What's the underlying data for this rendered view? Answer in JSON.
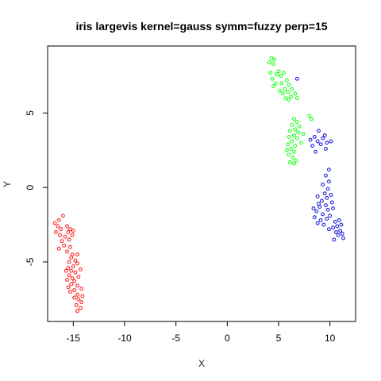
{
  "chart_data": {
    "type": "scatter",
    "title": "iris largevis kernel=gauss symm=fuzzy perp=15",
    "xlabel": "X",
    "ylabel": "Y",
    "xlim": [
      -17.5,
      12.5
    ],
    "ylim": [
      -9,
      9.5
    ],
    "xticks": [
      -15,
      -10,
      -5,
      0,
      5,
      10
    ],
    "yticks": [
      -5,
      0,
      5
    ],
    "grid": false,
    "series": [
      {
        "color": "#ff2a2a",
        "points": [
          [
            -16.0,
            -1.9
          ],
          [
            -16.4,
            -2.2
          ],
          [
            -16.8,
            -2.4
          ],
          [
            -16.5,
            -2.6
          ],
          [
            -16.2,
            -2.8
          ],
          [
            -16.7,
            -3.0
          ],
          [
            -16.3,
            -3.2
          ],
          [
            -15.6,
            -2.6
          ],
          [
            -15.3,
            -2.8
          ],
          [
            -15.0,
            -2.9
          ],
          [
            -15.5,
            -3.0
          ],
          [
            -15.1,
            -3.2
          ],
          [
            -15.8,
            -3.3
          ],
          [
            -15.4,
            -3.5
          ],
          [
            -16.1,
            -3.6
          ],
          [
            -15.9,
            -3.9
          ],
          [
            -16.4,
            -4.1
          ],
          [
            -15.3,
            -4.0
          ],
          [
            -15.6,
            -4.3
          ],
          [
            -15.1,
            -4.5
          ],
          [
            -14.6,
            -4.5
          ],
          [
            -15.2,
            -4.7
          ],
          [
            -14.8,
            -4.9
          ],
          [
            -15.4,
            -5.0
          ],
          [
            -14.6,
            -5.1
          ],
          [
            -15.0,
            -5.3
          ],
          [
            -14.3,
            -5.5
          ],
          [
            -15.5,
            -5.4
          ],
          [
            -15.7,
            -5.6
          ],
          [
            -15.2,
            -5.6
          ],
          [
            -14.8,
            -5.7
          ],
          [
            -15.4,
            -5.9
          ],
          [
            -14.5,
            -6.0
          ],
          [
            -15.1,
            -6.1
          ],
          [
            -15.6,
            -6.2
          ],
          [
            -14.9,
            -6.3
          ],
          [
            -15.2,
            -6.5
          ],
          [
            -14.6,
            -6.6
          ],
          [
            -15.5,
            -6.7
          ],
          [
            -14.2,
            -6.8
          ],
          [
            -14.9,
            -6.9
          ],
          [
            -15.3,
            -7.0
          ],
          [
            -14.6,
            -7.2
          ],
          [
            -14.1,
            -7.3
          ],
          [
            -14.9,
            -7.4
          ],
          [
            -14.5,
            -7.5
          ],
          [
            -14.2,
            -7.7
          ],
          [
            -14.7,
            -7.9
          ],
          [
            -14.3,
            -8.1
          ],
          [
            -14.6,
            -8.3
          ]
        ]
      },
      {
        "color": "#22ff22",
        "points": [
          [
            4.3,
            8.7
          ],
          [
            4.6,
            8.6
          ],
          [
            4.1,
            8.4
          ],
          [
            4.5,
            8.3
          ],
          [
            5.0,
            7.8
          ],
          [
            4.2,
            7.7
          ],
          [
            5.5,
            7.7
          ],
          [
            4.8,
            7.6
          ],
          [
            5.2,
            7.5
          ],
          [
            4.4,
            7.3
          ],
          [
            5.8,
            7.2
          ],
          [
            4.7,
            7.0
          ],
          [
            5.3,
            7.0
          ],
          [
            6.0,
            6.9
          ],
          [
            4.5,
            6.8
          ],
          [
            5.6,
            6.6
          ],
          [
            6.3,
            6.6
          ],
          [
            5.1,
            6.5
          ],
          [
            5.9,
            6.4
          ],
          [
            5.4,
            6.3
          ],
          [
            6.6,
            6.3
          ],
          [
            6.2,
            6.1
          ],
          [
            5.7,
            6.0
          ],
          [
            6.8,
            6.0
          ],
          [
            6.0,
            5.9
          ],
          [
            8.0,
            4.8
          ],
          [
            8.2,
            4.6
          ],
          [
            6.5,
            4.6
          ],
          [
            6.8,
            4.4
          ],
          [
            6.3,
            4.2
          ],
          [
            7.0,
            4.1
          ],
          [
            6.6,
            3.9
          ],
          [
            6.1,
            3.8
          ],
          [
            6.9,
            3.7
          ],
          [
            7.4,
            3.6
          ],
          [
            6.5,
            3.5
          ],
          [
            6.0,
            3.4
          ],
          [
            6.8,
            3.3
          ],
          [
            6.3,
            3.1
          ],
          [
            7.2,
            3.0
          ],
          [
            5.9,
            2.9
          ],
          [
            6.6,
            2.8
          ],
          [
            6.2,
            2.6
          ],
          [
            5.8,
            2.5
          ],
          [
            6.5,
            2.4
          ],
          [
            6.0,
            2.2
          ],
          [
            6.4,
            2.0
          ],
          [
            6.7,
            1.8
          ],
          [
            6.1,
            1.7
          ],
          [
            6.5,
            1.6
          ]
        ]
      },
      {
        "color": "#2222dd",
        "points": [
          [
            6.8,
            7.3
          ],
          [
            8.9,
            3.8
          ],
          [
            9.5,
            3.5
          ],
          [
            8.5,
            3.4
          ],
          [
            9.3,
            3.3
          ],
          [
            8.1,
            3.2
          ],
          [
            10.1,
            3.1
          ],
          [
            9.7,
            3.0
          ],
          [
            8.8,
            3.1
          ],
          [
            9.1,
            2.9
          ],
          [
            8.3,
            2.8
          ],
          [
            9.6,
            2.6
          ],
          [
            8.6,
            2.4
          ],
          [
            9.9,
            1.2
          ],
          [
            9.6,
            0.8
          ],
          [
            9.9,
            0.4
          ],
          [
            9.3,
            0.2
          ],
          [
            9.8,
            -0.1
          ],
          [
            9.5,
            -0.4
          ],
          [
            10.1,
            -0.5
          ],
          [
            8.8,
            -0.6
          ],
          [
            9.7,
            -0.7
          ],
          [
            9.2,
            -0.9
          ],
          [
            10.2,
            -1.0
          ],
          [
            8.9,
            -1.1
          ],
          [
            9.6,
            -1.2
          ],
          [
            9.0,
            -1.3
          ],
          [
            8.4,
            -1.4
          ],
          [
            9.8,
            -1.5
          ],
          [
            10.3,
            -1.4
          ],
          [
            8.7,
            -1.6
          ],
          [
            9.3,
            -1.8
          ],
          [
            10.0,
            -1.9
          ],
          [
            8.5,
            -2.0
          ],
          [
            9.7,
            -2.1
          ],
          [
            9.1,
            -2.2
          ],
          [
            10.5,
            -2.3
          ],
          [
            10.9,
            -2.2
          ],
          [
            8.8,
            -2.4
          ],
          [
            9.4,
            -2.5
          ],
          [
            10.7,
            -2.6
          ],
          [
            11.1,
            -2.5
          ],
          [
            10.3,
            -2.7
          ],
          [
            11.0,
            -2.9
          ],
          [
            9.9,
            -2.8
          ],
          [
            10.6,
            -3.0
          ],
          [
            11.2,
            -3.1
          ],
          [
            10.8,
            -3.2
          ],
          [
            10.4,
            -3.5
          ],
          [
            11.3,
            -3.4
          ]
        ]
      }
    ]
  }
}
